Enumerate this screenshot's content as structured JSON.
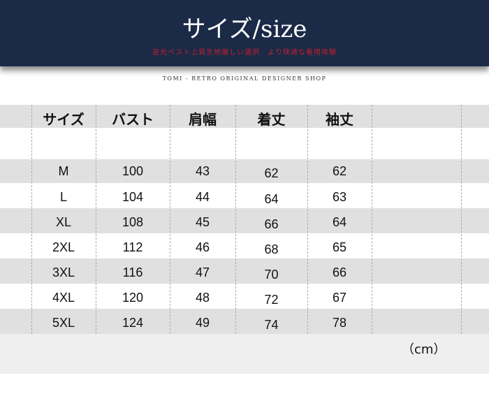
{
  "banner": {
    "title": "サイズ/size",
    "subtitle": "逆光ベスト上質生地厳しい選択　より快適な着用体験",
    "shop": "TOMI - RETRO ORIGINAL DESIGNER SHOP"
  },
  "table": {
    "headers": [
      "サイズ",
      "バスト",
      "肩幅",
      "着丈",
      "袖丈"
    ],
    "rows": [
      [
        "M",
        "100",
        "43",
        "62",
        "62"
      ],
      [
        "L",
        "104",
        "44",
        "64",
        "63"
      ],
      [
        "XL",
        "108",
        "45",
        "66",
        "64"
      ],
      [
        "2XL",
        "112",
        "46",
        "68",
        "65"
      ],
      [
        "3XL",
        "116",
        "47",
        "70",
        "66"
      ],
      [
        "4XL",
        "120",
        "48",
        "72",
        "67"
      ],
      [
        "5XL",
        "124",
        "49",
        "74",
        "78"
      ]
    ],
    "unit": "（cm）"
  },
  "colors": {
    "banner": "#1b2a47",
    "subtitle": "#c21f2e",
    "band": "#e0e0e0"
  }
}
